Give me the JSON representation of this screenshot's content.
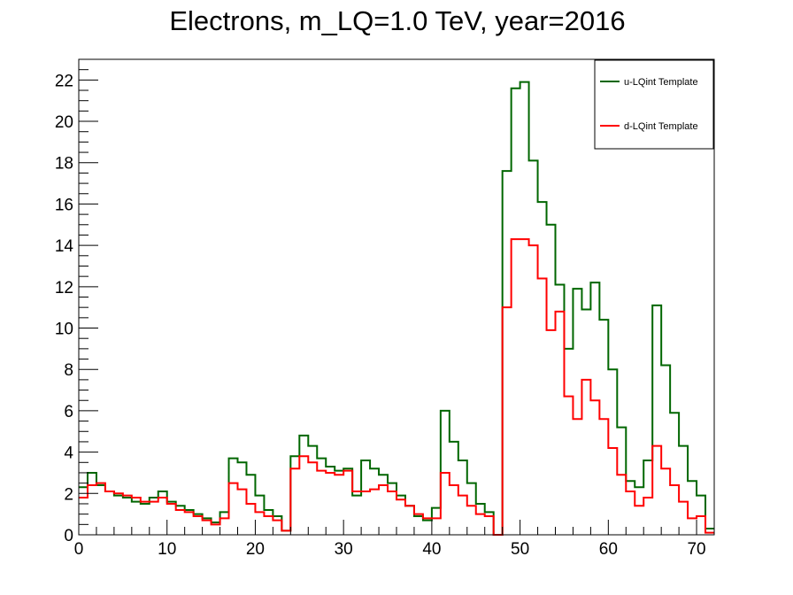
{
  "chart_data": {
    "type": "line",
    "style": "step-histogram",
    "title": "Electrons, m_LQ=1.0 TeV, year=2016",
    "xlabel": "",
    "ylabel": "",
    "xlim": [
      0,
      72
    ],
    "ylim": [
      0,
      23
    ],
    "x_major_ticks": [
      0,
      10,
      20,
      30,
      40,
      50,
      60,
      70
    ],
    "y_major_ticks": [
      0,
      2,
      4,
      6,
      8,
      10,
      12,
      14,
      16,
      18,
      20,
      22
    ],
    "bin_width": 1,
    "grid": false,
    "legend_position": "top-right",
    "series": [
      {
        "name": "u-LQint Template",
        "color": "#006600",
        "values": [
          2.3,
          3.0,
          2.4,
          2.1,
          1.9,
          1.8,
          1.6,
          1.5,
          1.8,
          2.1,
          1.6,
          1.4,
          1.2,
          1.0,
          0.8,
          0.6,
          1.1,
          3.7,
          3.5,
          2.9,
          1.9,
          1.2,
          0.9,
          0.2,
          3.8,
          4.8,
          4.3,
          3.7,
          3.3,
          3.1,
          3.2,
          1.9,
          3.6,
          3.2,
          2.9,
          2.5,
          1.9,
          1.4,
          0.9,
          0.7,
          1.3,
          6.0,
          4.5,
          3.6,
          2.5,
          1.5,
          1.1,
          0.0,
          17.6,
          21.6,
          21.9,
          18.1,
          16.1,
          15.0,
          12.1,
          9.0,
          11.9,
          10.9,
          12.2,
          10.4,
          8.0,
          5.2,
          2.6,
          2.3,
          3.6,
          11.1,
          8.2,
          5.9,
          4.3,
          2.6,
          1.9,
          0.3
        ]
      },
      {
        "name": "d-LQint Template",
        "color": "#ff0000",
        "values": [
          1.8,
          2.4,
          2.5,
          2.1,
          2.0,
          1.9,
          1.8,
          1.6,
          1.6,
          1.8,
          1.5,
          1.2,
          1.1,
          0.9,
          0.7,
          0.5,
          0.8,
          2.5,
          2.2,
          1.5,
          1.1,
          0.9,
          0.7,
          0.2,
          3.2,
          3.8,
          3.5,
          3.1,
          3.0,
          2.9,
          3.1,
          2.1,
          2.1,
          2.2,
          2.4,
          2.1,
          1.7,
          1.4,
          1.0,
          0.8,
          0.8,
          3.0,
          2.4,
          1.9,
          1.4,
          1.0,
          0.9,
          0.0,
          11.0,
          14.3,
          14.3,
          14.0,
          12.4,
          9.9,
          10.8,
          6.7,
          5.6,
          7.5,
          6.5,
          5.6,
          4.2,
          2.9,
          2.1,
          1.4,
          1.8,
          4.3,
          3.2,
          2.4,
          1.6,
          0.8,
          0.9,
          0.1
        ]
      }
    ]
  }
}
